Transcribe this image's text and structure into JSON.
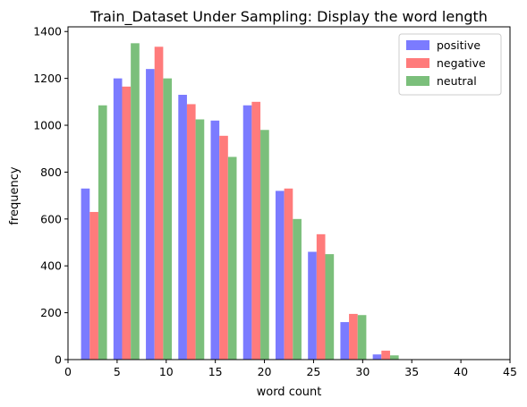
{
  "chart_data": {
    "type": "bar",
    "title": "Train_Dataset Under Sampling: Display the word length",
    "xlabel": "word count",
    "ylabel": "frequency",
    "xlim": [
      0,
      45
    ],
    "ylim": [
      0,
      1420
    ],
    "xticks": [
      0,
      5,
      10,
      15,
      20,
      25,
      30,
      35,
      40,
      45
    ],
    "yticks": [
      0,
      200,
      400,
      600,
      800,
      1000,
      1200,
      1400
    ],
    "bin_edges": [
      1,
      4.3,
      7.6,
      10.9,
      14.2,
      17.5,
      20.8,
      24.1,
      27.4,
      30.7,
      34
    ],
    "legend_position": "top-right",
    "series": [
      {
        "name": "positive",
        "color": "#7b7bff",
        "values": [
          730,
          1200,
          1240,
          1130,
          1020,
          1085,
          720,
          460,
          160,
          22
        ]
      },
      {
        "name": "negative",
        "color": "#ff7b7b",
        "values": [
          630,
          1165,
          1335,
          1090,
          955,
          1100,
          730,
          535,
          195,
          38
        ]
      },
      {
        "name": "neutral",
        "color": "#7bbf7b",
        "values": [
          1085,
          1350,
          1200,
          1025,
          865,
          980,
          600,
          450,
          190,
          18
        ]
      }
    ]
  }
}
